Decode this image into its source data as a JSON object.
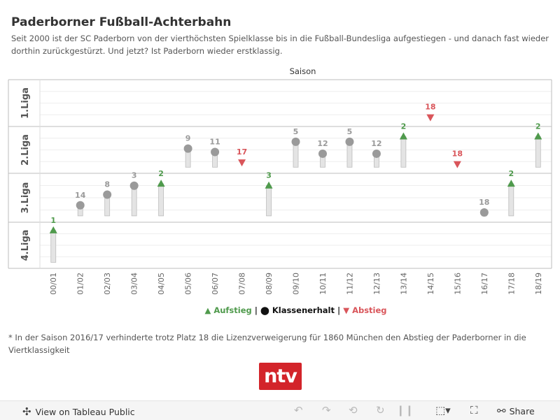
{
  "title": "Paderborner Fußball-Achterbahn",
  "subtitle": "Seit 2000 ist der SC Paderborn von der vierthöchsten Spielklasse bis in die Fußball-Bundesliga aufgestiegen - und danach fast wieder dorthin zurückgestürzt. Und jetzt? Ist Paderborn wieder erstklassig.",
  "legend": {
    "aufstieg": "▲ Aufstieg",
    "klassenerhalt": "⬤ Klassenerhalt",
    "abstieg": "▼ Abstieg",
    "separator": "|"
  },
  "footnote": "* In der Saison 2016/17 verhinderte trotz Platz 18 die Lizenzverweigerung für 1860 München den Abstieg der Paderborner in die Viertklassigkeit",
  "logo_text": "ntv",
  "toolbar": {
    "view_label": "View on Tableau Public",
    "share_label": "Share",
    "icons": [
      "tableau-icon",
      "undo-icon",
      "redo-icon",
      "revert-icon",
      "refresh-icon",
      "pause-icon",
      "download-icon",
      "fullscreen-icon",
      "share-icon"
    ]
  },
  "colors": {
    "aufstieg": "#4f9a4c",
    "klassenerhalt": "#9a9a9a",
    "abstieg": "#d9555a",
    "bar": "#e4e4e4",
    "grid": "#eeeeee",
    "logo": "#d3242a"
  },
  "chart_data": {
    "type": "scatter",
    "column_header": "Saison",
    "rows": [
      "1.Liga",
      "2.Liga",
      "3.Liga",
      "4.Liga"
    ],
    "categories": [
      "00/01",
      "01/02",
      "02/03",
      "03/04",
      "04/05",
      "05/06",
      "06/07",
      "07/08",
      "08/09",
      "09/10",
      "10/11",
      "11/12",
      "12/13",
      "13/14",
      "14/15",
      "15/16",
      "16/17",
      "17/18",
      "18/19"
    ],
    "seasons": [
      {
        "season": "00/01",
        "liga": "4.Liga",
        "platz": 1,
        "result": "aufstieg"
      },
      {
        "season": "01/02",
        "liga": "3.Liga",
        "platz": 14,
        "result": "klassenerhalt"
      },
      {
        "season": "02/03",
        "liga": "3.Liga",
        "platz": 8,
        "result": "klassenerhalt"
      },
      {
        "season": "03/04",
        "liga": "3.Liga",
        "platz": 3,
        "result": "klassenerhalt"
      },
      {
        "season": "04/05",
        "liga": "3.Liga",
        "platz": 2,
        "result": "aufstieg"
      },
      {
        "season": "05/06",
        "liga": "2.Liga",
        "platz": 9,
        "result": "klassenerhalt"
      },
      {
        "season": "06/07",
        "liga": "2.Liga",
        "platz": 11,
        "result": "klassenerhalt"
      },
      {
        "season": "07/08",
        "liga": "2.Liga",
        "platz": 17,
        "result": "abstieg"
      },
      {
        "season": "08/09",
        "liga": "3.Liga",
        "platz": 3,
        "result": "aufstieg"
      },
      {
        "season": "09/10",
        "liga": "2.Liga",
        "platz": 5,
        "result": "klassenerhalt"
      },
      {
        "season": "10/11",
        "liga": "2.Liga",
        "platz": 12,
        "result": "klassenerhalt"
      },
      {
        "season": "11/12",
        "liga": "2.Liga",
        "platz": 5,
        "result": "klassenerhalt"
      },
      {
        "season": "12/13",
        "liga": "2.Liga",
        "platz": 12,
        "result": "klassenerhalt"
      },
      {
        "season": "13/14",
        "liga": "2.Liga",
        "platz": 2,
        "result": "aufstieg"
      },
      {
        "season": "14/15",
        "liga": "1.Liga",
        "platz": 18,
        "result": "abstieg"
      },
      {
        "season": "15/16",
        "liga": "2.Liga",
        "platz": 18,
        "result": "abstieg"
      },
      {
        "season": "16/17",
        "liga": "3.Liga",
        "platz": 18,
        "result": "klassenerhalt"
      },
      {
        "season": "17/18",
        "liga": "3.Liga",
        "platz": 2,
        "result": "aufstieg"
      },
      {
        "season": "18/19",
        "liga": "2.Liga",
        "platz": 2,
        "result": "aufstieg"
      }
    ]
  }
}
